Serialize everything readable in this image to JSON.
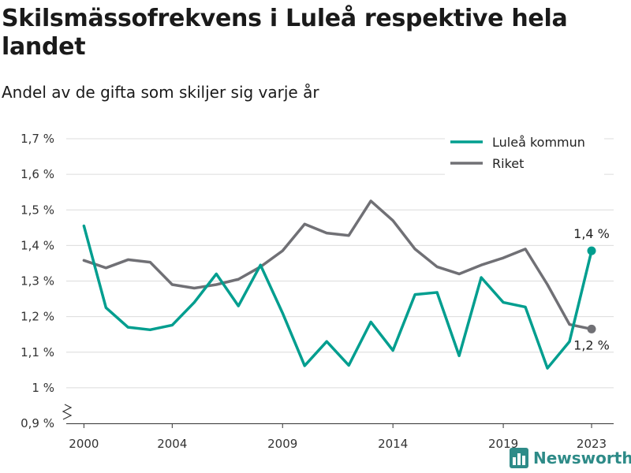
{
  "header": {
    "title": "Skilsmässofrekvens i Luleå respektive hela landet",
    "subtitle": "Andel av de gifta som skiljer sig varje år"
  },
  "brand": {
    "name": "Newsworthy",
    "icon": "bar-chart-logo-icon",
    "color": "#2e8b88"
  },
  "chart_data": {
    "type": "line",
    "title": "Skilsmässofrekvens i Luleå respektive hela landet",
    "subtitle": "Andel av de gifta som skiljer sig varje år",
    "x": [
      2000,
      2001,
      2002,
      2003,
      2004,
      2005,
      2006,
      2007,
      2008,
      2009,
      2010,
      2011,
      2012,
      2013,
      2014,
      2015,
      2016,
      2017,
      2018,
      2019,
      2020,
      2021,
      2022,
      2023
    ],
    "x_ticks": [
      2000,
      2004,
      2009,
      2014,
      2019,
      2023
    ],
    "y_ticks": [
      0.9,
      1.0,
      1.1,
      1.2,
      1.3,
      1.4,
      1.5,
      1.6,
      1.7
    ],
    "y_tick_labels": [
      "0,9 %",
      "1 %",
      "1,1 %",
      "1,2 %",
      "1,3 %",
      "1,4 %",
      "1,5 %",
      "1,6 %",
      "1,7 %"
    ],
    "ylim": [
      0.9,
      1.7
    ],
    "xlim": [
      1999.2,
      2024
    ],
    "y_axis_break": true,
    "grid": true,
    "legend_position": "top-right",
    "series": [
      {
        "name": "Luleå kommun",
        "color": "#009e8f",
        "values": [
          1.455,
          1.225,
          1.17,
          1.163,
          1.176,
          1.24,
          1.32,
          1.23,
          1.345,
          1.21,
          1.062,
          1.13,
          1.063,
          1.185,
          1.105,
          1.262,
          1.268,
          1.09,
          1.31,
          1.24,
          1.227,
          1.055,
          1.13,
          1.385
        ],
        "end_label": "1,4 %"
      },
      {
        "name": "Riket",
        "color": "#707075",
        "values": [
          1.358,
          1.337,
          1.36,
          1.353,
          1.29,
          1.28,
          1.29,
          1.305,
          1.34,
          1.385,
          1.46,
          1.435,
          1.428,
          1.525,
          1.47,
          1.39,
          1.34,
          1.32,
          1.345,
          1.365,
          1.39,
          1.29,
          1.178,
          1.165
        ],
        "end_label": "1,2 %"
      }
    ]
  }
}
